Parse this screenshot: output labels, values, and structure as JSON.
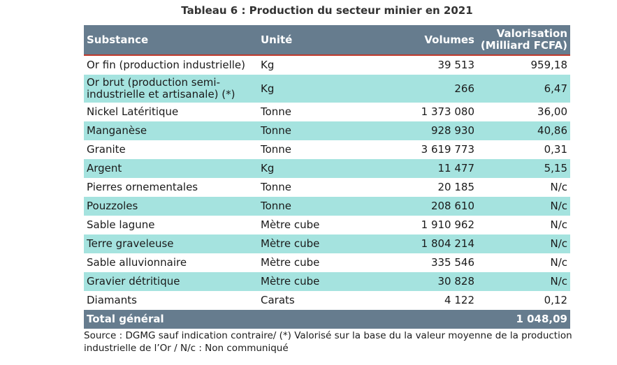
{
  "caption": "Tableau 6 : Production du secteur minier en 2021",
  "headers": {
    "substance": "Substance",
    "unite": "Unité",
    "volumes": "Volumes",
    "valorisation_1": "Valorisation",
    "valorisation_2": "(Milliard FCFA)"
  },
  "rows": [
    {
      "substance": "Or fin (production industrielle)",
      "unite": "Kg",
      "volumes": "39 513",
      "valorisation": "959,18"
    },
    {
      "substance": "Or brut (production semi-industrielle et artisanale) (*)",
      "unite": "Kg",
      "volumes": "266",
      "valorisation": "6,47"
    },
    {
      "substance": "Nickel Latéritique",
      "unite": "Tonne",
      "volumes": "1 373 080",
      "valorisation": "36,00"
    },
    {
      "substance": "Manganèse",
      "unite": "Tonne",
      "volumes": "928 930",
      "valorisation": "40,86"
    },
    {
      "substance": "Granite",
      "unite": "Tonne",
      "volumes": "3 619 773",
      "valorisation": "0,31"
    },
    {
      "substance": "Argent",
      "unite": "Kg",
      "volumes": "11 477",
      "valorisation": "5,15"
    },
    {
      "substance": "Pierres ornementales",
      "unite": "Tonne",
      "volumes": "20 185",
      "valorisation": "N/c"
    },
    {
      "substance": "Pouzzoles",
      "unite": "Tonne",
      "volumes": "208 610",
      "valorisation": "N/c"
    },
    {
      "substance": "Sable lagune",
      "unite": "Mètre cube",
      "volumes": "1 910 962",
      "valorisation": "N/c"
    },
    {
      "substance": "Terre graveleuse",
      "unite": "Mètre cube",
      "volumes": "1 804 214",
      "valorisation": "N/c"
    },
    {
      "substance": "Sable alluvionnaire",
      "unite": "Mètre cube",
      "volumes": "335 546",
      "valorisation": "N/c"
    },
    {
      "substance": "Gravier détritique",
      "unite": "Mètre cube",
      "volumes": "30 828",
      "valorisation": "N/c"
    },
    {
      "substance": "Diamants",
      "unite": "Carats",
      "volumes": "4 122",
      "valorisation": "0,12"
    }
  ],
  "total": {
    "label": "Total général",
    "valorisation": "1 048,09"
  },
  "source": "Source : DGMG sauf indication contraire/ (*) Valorisé sur la base du la valeur moyenne de la production industrielle de l’Or / N/c : Non communiqué"
}
